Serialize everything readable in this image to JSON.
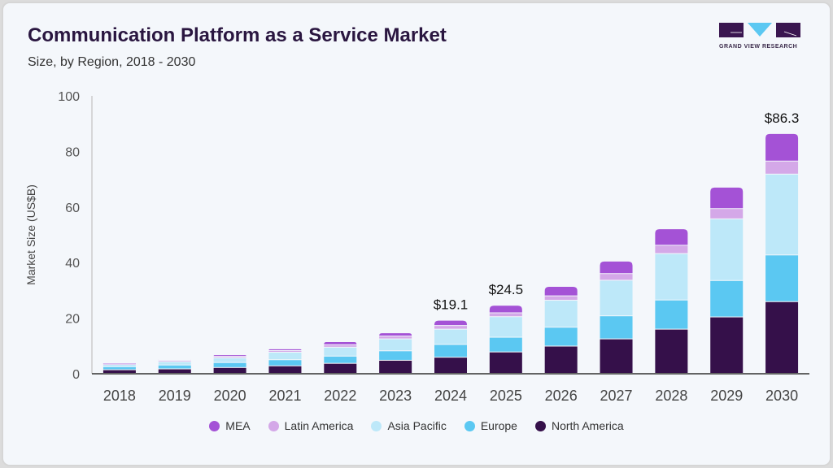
{
  "header": {
    "title": "Communication Platform as a Service Market",
    "subtitle": "Size, by Region, 2018 - 2030"
  },
  "logo": {
    "text": "GRAND VIEW RESEARCH"
  },
  "chart_data": {
    "type": "bar",
    "stacked": true,
    "ylabel": "Market Size (US$B)",
    "xlabel": "",
    "ylim": [
      0,
      100
    ],
    "yticks": [
      0,
      20,
      40,
      60,
      80,
      100
    ],
    "grid": false,
    "legend_position": "bottom",
    "categories": [
      "2018",
      "2019",
      "2020",
      "2021",
      "2022",
      "2023",
      "2024",
      "2025",
      "2026",
      "2027",
      "2028",
      "2029",
      "2030"
    ],
    "series": [
      {
        "name": "North America",
        "color": "#35104a",
        "values": [
          1.3,
          1.6,
          2.1,
          2.7,
          3.6,
          4.7,
          5.8,
          7.7,
          9.8,
          12.4,
          15.9,
          20.3,
          25.8
        ]
      },
      {
        "name": "Europe",
        "color": "#5bc8f2",
        "values": [
          1.1,
          1.4,
          1.8,
          2.2,
          2.6,
          3.4,
          4.6,
          5.3,
          6.8,
          8.3,
          10.5,
          13.1,
          16.8
        ]
      },
      {
        "name": "Asia Pacific",
        "color": "#bde8f9",
        "values": [
          0.8,
          1.2,
          1.7,
          2.7,
          3.2,
          4.3,
          5.5,
          7.4,
          9.7,
          12.8,
          16.7,
          22.2,
          29.1
        ]
      },
      {
        "name": "Latin America",
        "color": "#d4a8e8",
        "values": [
          0.3,
          0.5,
          0.5,
          0.6,
          0.9,
          1.0,
          1.3,
          1.4,
          1.6,
          2.4,
          3.0,
          3.7,
          4.7
        ]
      },
      {
        "name": "MEA",
        "color": "#a452d6",
        "values": [
          0.2,
          0.3,
          0.6,
          0.6,
          1.1,
          1.2,
          1.9,
          2.7,
          3.4,
          4.5,
          5.9,
          7.7,
          9.9
        ]
      }
    ],
    "annotations": [
      {
        "category": "2024",
        "label": "$19.1"
      },
      {
        "category": "2025",
        "label": "$24.5"
      },
      {
        "category": "2030",
        "label": "$86.3"
      }
    ]
  }
}
